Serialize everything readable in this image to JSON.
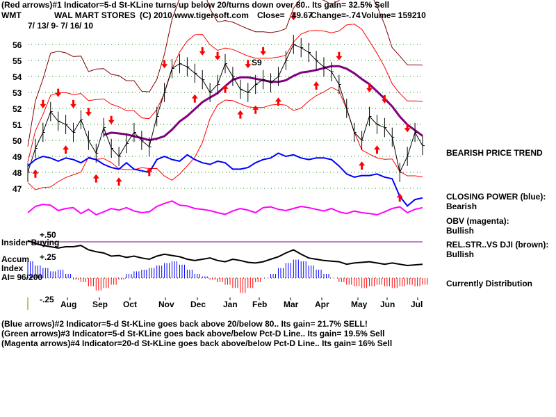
{
  "header": {
    "line1": "(Red arrows)#1 Indicator=5-d St-KLine turns up below 20/turns down over 80.. Its gain= 32.5% Sell",
    "symbol": "WMT",
    "company": "WAL MART STORES",
    "copyright": "(C) 2010 www.tigersoft.com",
    "close": "Close=   49.67",
    "change": "Change=-.74",
    "volume": "Volume= 159210",
    "date_range": "7/ 13/ 9- 7/ 16/ 10"
  },
  "footer": {
    "line2": "(Blue arrows)#2 Indicator=5-d St-KLine goes back above 20/below 80.. Its gain= 21.7% SELL!",
    "line3": "(Green arrows)#3 Indicator=5-d St-KLine goes back above/below Pct-D Line.. Its gain= 19.5% Sell",
    "line4": "(Magenta arrows)#4 Indicator=20-d St-KLine goes back above/below Pct-D Line.. Its gain= 16% Sell"
  },
  "side": {
    "trend": "BEARISH PRICE TREND",
    "cp_label": "CLOSING POWER (blue):",
    "cp_value": "Bearish",
    "obv_label": "OBV (magenta):",
    "obv_value": "Bullish",
    "rs_label": "REL.STR..VS DJI (brown):",
    "rs_value": "Bullish",
    "status": "Currently Distribution"
  },
  "panels": {
    "insider": "Insider Buying",
    "accum": "Accum",
    "index": "Index",
    "ai": "AI= 96/200",
    "p50": "+.50",
    "p25": "+.25",
    "m25": "-.25",
    "s9": "S9"
  },
  "colors": {
    "price": "#000000",
    "closing_power": "#0000ff",
    "obv": "#ff00ff",
    "ma": "#800080",
    "bands": "#ff0000",
    "outer_band": "#800000",
    "grid": "#008000",
    "accum_pos": "#0000ff",
    "accum_neg": "#ff0000"
  },
  "chart_data": {
    "type": "line",
    "ylim": [
      47,
      56
    ],
    "yticks": [
      "56",
      "55",
      "54",
      "53",
      "52",
      "51",
      "50",
      "49",
      "48",
      "47"
    ],
    "xticks": [
      "Aug",
      "Sep",
      "Oct",
      "Nov",
      "Dec",
      "Jan",
      "Feb",
      "Mar",
      "Apr",
      "May",
      "Jun",
      "Jul"
    ],
    "grid": true,
    "close": [
      48.0,
      49.5,
      50.5,
      51.8,
      51.2,
      51.0,
      50.5,
      51.3,
      50.0,
      49.2,
      50.8,
      49.5,
      49.0,
      49.8,
      50.5,
      50.0,
      49.6,
      51.5,
      53.0,
      54.5,
      54.8,
      54.6,
      54.2,
      53.8,
      53.0,
      53.5,
      54.8,
      54.0,
      53.2,
      53.0,
      53.5,
      53.8,
      53.6,
      54.0,
      55.0,
      56.0,
      55.8,
      55.5,
      55.0,
      54.6,
      54.3,
      53.5,
      52.0,
      50.5,
      50.0,
      51.5,
      51.0,
      50.8,
      50.2,
      48.0,
      49.0,
      50.5,
      49.67
    ],
    "closing_power": [
      48.4,
      48.8,
      49.0,
      48.9,
      48.7,
      48.9,
      48.8,
      48.6,
      48.9,
      48.8,
      48.5,
      48.3,
      48.2,
      48.6,
      48.2,
      48.1,
      48.0,
      48.8,
      49.0,
      48.8,
      48.7,
      49.1,
      48.8,
      48.6,
      48.5,
      48.7,
      48.6,
      48.2,
      48.2,
      48.3,
      48.6,
      48.8,
      48.9,
      49.2,
      49.0,
      49.1,
      48.9,
      48.8,
      48.9,
      48.9,
      48.8,
      48.4,
      47.9,
      47.7,
      47.8,
      47.8,
      47.9,
      47.7,
      47.6,
      46.5,
      45.9,
      46.3,
      46.4
    ],
    "obv": [
      40,
      55,
      60,
      58,
      45,
      50,
      52,
      38,
      48,
      35,
      42,
      50,
      46,
      52,
      44,
      40,
      42,
      55,
      62,
      68,
      58,
      56,
      50,
      48,
      45,
      40,
      36,
      44,
      50,
      46,
      40,
      52,
      54,
      48,
      45,
      50,
      55,
      52,
      48,
      44,
      50,
      42,
      38,
      44,
      40,
      38,
      35,
      42,
      50,
      54,
      40,
      48,
      52
    ],
    "accum_index": [
      0.2,
      0.15,
      0.12,
      0.08,
      0.1,
      0.05,
      -0.02,
      -0.05,
      -0.1,
      -0.15,
      -0.12,
      -0.08,
      -0.02,
      0.05,
      0.08,
      0.1,
      0.12,
      0.15,
      0.18,
      0.2,
      0.16,
      0.1,
      0.05,
      0.02,
      -0.02,
      -0.05,
      -0.08,
      -0.12,
      -0.18,
      -0.12,
      -0.05,
      0.0,
      0.05,
      0.12,
      0.18,
      0.22,
      0.2,
      0.15,
      0.1,
      0.05,
      0.0,
      -0.05,
      -0.08,
      -0.1,
      -0.12,
      -0.1,
      -0.08,
      -0.1,
      -0.12,
      -0.1,
      -0.08,
      -0.1,
      -0.08
    ],
    "rel_strength": [
      0.6,
      0.55,
      0.52,
      0.5,
      0.48,
      0.5,
      0.5,
      0.52,
      0.45,
      0.42,
      0.4,
      0.35,
      0.36,
      0.33,
      0.35,
      0.32,
      0.3,
      0.35,
      0.38,
      0.36,
      0.34,
      0.3,
      0.28,
      0.3,
      0.32,
      0.28,
      0.26,
      0.3,
      0.28,
      0.25,
      0.24,
      0.26,
      0.3,
      0.34,
      0.4,
      0.45,
      0.38,
      0.32,
      0.3,
      0.28,
      0.27,
      0.26,
      0.22,
      0.24,
      0.25,
      0.26,
      0.24,
      0.22,
      0.24,
      0.22,
      0.2,
      0.21,
      0.22
    ],
    "sell_signals_week": [
      2,
      4,
      6,
      8,
      11,
      18,
      23,
      25,
      29,
      31,
      35,
      41,
      45,
      47,
      50
    ],
    "buy_signals_week": [
      1,
      5,
      9,
      12,
      16,
      22,
      26,
      28,
      30,
      33,
      38,
      44,
      46,
      49
    ]
  }
}
